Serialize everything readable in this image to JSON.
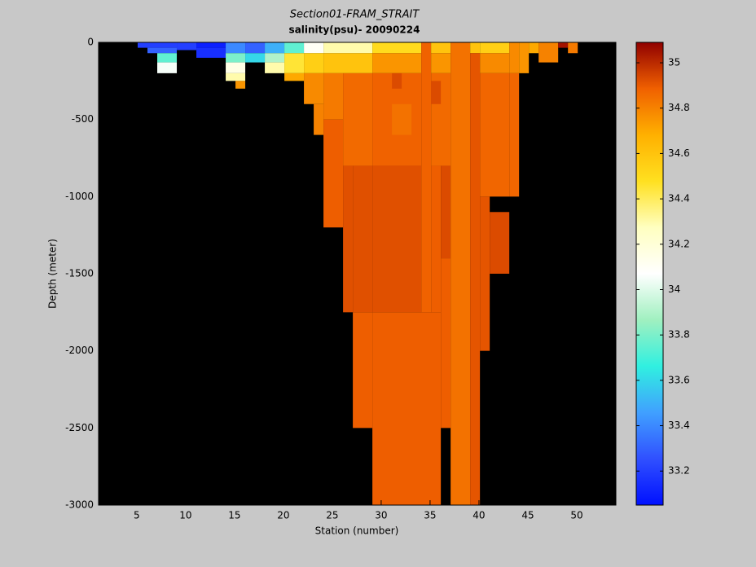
{
  "chart_data": {
    "type": "section",
    "title": "Section01-FRAM_STRAIT",
    "subtitle": "salinity(psu)- 20090224",
    "x_label": "Station (number)",
    "y_label": "Depth (meter)",
    "xlim": [
      1.1,
      54
    ],
    "xticks": [
      5,
      10,
      15,
      20,
      25,
      30,
      35,
      40,
      45,
      50
    ],
    "ylim": [
      -3000,
      0
    ],
    "yticks": [
      -3000,
      -2500,
      -2000,
      -1500,
      -1000,
      -500,
      0
    ],
    "clim": [
      33.05,
      35.09
    ],
    "cticks": [
      33.2,
      33.4,
      33.6,
      33.8,
      34,
      34.2,
      34.4,
      34.6,
      34.8,
      35
    ],
    "colormap": [
      "#0010ff",
      "#3050ff",
      "#40a0ff",
      "#30f0e0",
      "#a0f0c0",
      "#ffffff",
      "#ffffc0",
      "#ffe020",
      "#ffb000",
      "#f06000",
      "#900000"
    ],
    "cells": [
      [
        5.1,
        9.1,
        0,
        -35,
        33.2
      ],
      [
        6.1,
        9.1,
        -35,
        -70,
        33.3
      ],
      [
        7.1,
        9.1,
        -70,
        -130,
        33.75
      ],
      [
        7.1,
        9.1,
        -130,
        -200,
        34.05
      ],
      [
        9.1,
        11.1,
        0,
        -50,
        33.2
      ],
      [
        11.1,
        14.1,
        0,
        -35,
        33.1
      ],
      [
        11.1,
        14.1,
        -35,
        -100,
        33.15
      ],
      [
        14.1,
        16.1,
        0,
        -70,
        33.4
      ],
      [
        14.1,
        16.1,
        -70,
        -130,
        33.8
      ],
      [
        14.1,
        16.1,
        -130,
        -200,
        34.15
      ],
      [
        14.1,
        16.1,
        -200,
        -250,
        34.3
      ],
      [
        15.1,
        16.1,
        -250,
        -300,
        34.75
      ],
      [
        16.1,
        18.1,
        0,
        -70,
        33.3
      ],
      [
        16.1,
        18.1,
        -70,
        -130,
        33.6
      ],
      [
        18.1,
        20.1,
        0,
        -70,
        33.5
      ],
      [
        18.1,
        20.1,
        -70,
        -130,
        33.9
      ],
      [
        18.1,
        20.1,
        -130,
        -200,
        34.3
      ],
      [
        20.1,
        22.1,
        0,
        -70,
        33.75
      ],
      [
        20.1,
        22.1,
        -70,
        -200,
        34.45
      ],
      [
        20.1,
        22.1,
        -200,
        -250,
        34.7
      ],
      [
        22.1,
        24.1,
        0,
        -70,
        34.1
      ],
      [
        22.1,
        24.1,
        -70,
        -200,
        34.55
      ],
      [
        22.1,
        24.1,
        -200,
        -400,
        34.78
      ],
      [
        23.1,
        24.1,
        -400,
        -600,
        34.8
      ],
      [
        24.1,
        29.1,
        0,
        -70,
        34.3
      ],
      [
        24.1,
        29.1,
        -70,
        -200,
        34.6
      ],
      [
        24.1,
        26.1,
        -200,
        -500,
        34.82
      ],
      [
        24.1,
        26.1,
        -500,
        -1200,
        34.89
      ],
      [
        26.1,
        29.1,
        -200,
        -800,
        34.86
      ],
      [
        26.1,
        27.1,
        -800,
        -1750,
        34.92
      ],
      [
        27.1,
        29.1,
        -800,
        -1750,
        34.92
      ],
      [
        27.1,
        29.1,
        -1750,
        -2500,
        34.89
      ],
      [
        29.1,
        34.1,
        0,
        -70,
        34.5
      ],
      [
        29.1,
        34.1,
        -70,
        -200,
        34.75
      ],
      [
        29.1,
        34.1,
        -200,
        -800,
        34.88
      ],
      [
        31.1,
        32.1,
        -200,
        -300,
        34.93
      ],
      [
        31.1,
        33.1,
        -400,
        -600,
        34.84
      ],
      [
        29.1,
        34.1,
        -800,
        -1750,
        34.92
      ],
      [
        29.1,
        36.1,
        -1750,
        -3000,
        34.89
      ],
      [
        34.1,
        35.1,
        0,
        -1750,
        34.88
      ],
      [
        35.1,
        37.1,
        0,
        -70,
        34.6
      ],
      [
        35.1,
        37.1,
        -70,
        -200,
        34.75
      ],
      [
        35.1,
        37.1,
        -200,
        -800,
        34.86
      ],
      [
        35.1,
        36.1,
        -250,
        -400,
        34.93
      ],
      [
        36.1,
        37.1,
        -800,
        -1400,
        34.93
      ],
      [
        35.1,
        36.1,
        -800,
        -1750,
        34.89
      ],
      [
        36.1,
        37.1,
        -1400,
        -2500,
        34.89
      ],
      [
        37.1,
        39.1,
        0,
        -3000,
        34.84
      ],
      [
        39.1,
        40.1,
        0,
        -70,
        34.6
      ],
      [
        39.1,
        40.1,
        -70,
        -3000,
        34.91
      ],
      [
        40.1,
        43.1,
        0,
        -70,
        34.55
      ],
      [
        40.1,
        43.1,
        -70,
        -200,
        34.78
      ],
      [
        40.1,
        43.1,
        -200,
        -1000,
        34.87
      ],
      [
        40.1,
        41.1,
        -1000,
        -2000,
        34.91
      ],
      [
        41.1,
        43.1,
        -1100,
        -1500,
        34.93
      ],
      [
        43.1,
        44.1,
        0,
        -200,
        34.78
      ],
      [
        43.1,
        44.1,
        -200,
        -1000,
        34.87
      ],
      [
        44.1,
        45.1,
        0,
        -200,
        34.75
      ],
      [
        45.1,
        46.1,
        0,
        -70,
        34.7
      ],
      [
        46.1,
        48.1,
        0,
        -130,
        34.8
      ],
      [
        48.1,
        49.1,
        0,
        -35,
        35.05
      ],
      [
        49.1,
        50.1,
        0,
        -70,
        34.82
      ]
    ]
  }
}
